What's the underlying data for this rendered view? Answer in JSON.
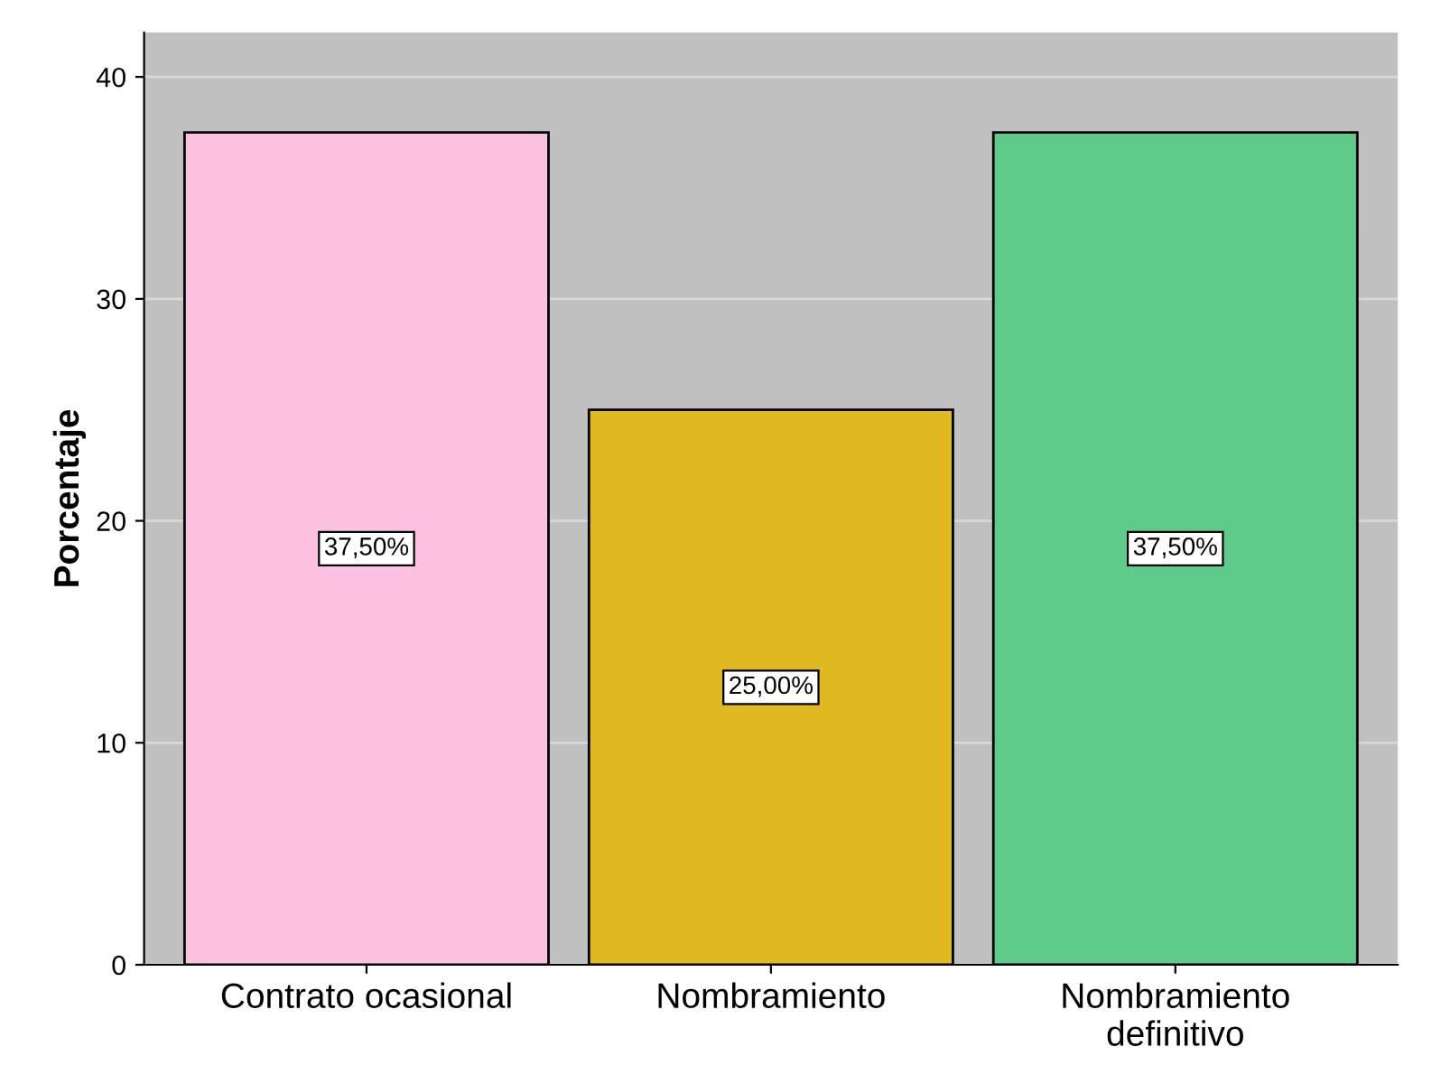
{
  "chart_data": {
    "type": "bar",
    "ylabel": "Porcentaje",
    "categories": [
      "Contrato ocasional",
      "Nombramiento",
      "Nombramiento\ndefinitivo"
    ],
    "values": [
      37.5,
      25.0,
      37.5
    ],
    "colors": [
      "#fcc0e0",
      "#e0b820",
      "#5ecb8a"
    ],
    "value_labels": [
      "37,50%",
      "25,00%",
      "37,50%"
    ],
    "ylim": [
      0,
      42
    ],
    "yticks": [
      0,
      10,
      20,
      30,
      40
    ],
    "grid": "y",
    "legend": false
  }
}
